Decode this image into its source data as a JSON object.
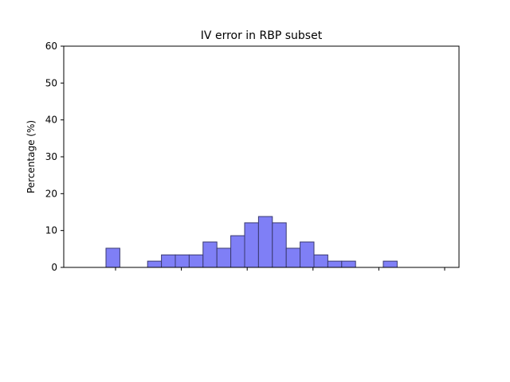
{
  "chart_data": {
    "type": "bar",
    "title": "IV error in RBP subset",
    "xlabel": "",
    "ylabel": "Percentage (%)",
    "ylim": [
      0,
      60
    ],
    "yticks": [
      "0",
      "10",
      "20",
      "30",
      "40",
      "50",
      "60"
    ],
    "x_tick_count": 6,
    "grid": false,
    "legend": "none",
    "bar_color": "#7f7ff6",
    "bar_edge_color": "#3a3a70",
    "bins": [
      {
        "bin": 0,
        "value": 5.2
      },
      {
        "bin": 3,
        "value": 1.7
      },
      {
        "bin": 4,
        "value": 3.4
      },
      {
        "bin": 5,
        "value": 3.4
      },
      {
        "bin": 6,
        "value": 3.4
      },
      {
        "bin": 7,
        "value": 6.9
      },
      {
        "bin": 8,
        "value": 5.2
      },
      {
        "bin": 9,
        "value": 8.6
      },
      {
        "bin": 10,
        "value": 12.1
      },
      {
        "bin": 11,
        "value": 13.8
      },
      {
        "bin": 12,
        "value": 12.1
      },
      {
        "bin": 13,
        "value": 5.2
      },
      {
        "bin": 14,
        "value": 6.9
      },
      {
        "bin": 15,
        "value": 3.4
      },
      {
        "bin": 16,
        "value": 1.7
      },
      {
        "bin": 17,
        "value": 1.7
      },
      {
        "bin": 20,
        "value": 1.7
      }
    ]
  }
}
